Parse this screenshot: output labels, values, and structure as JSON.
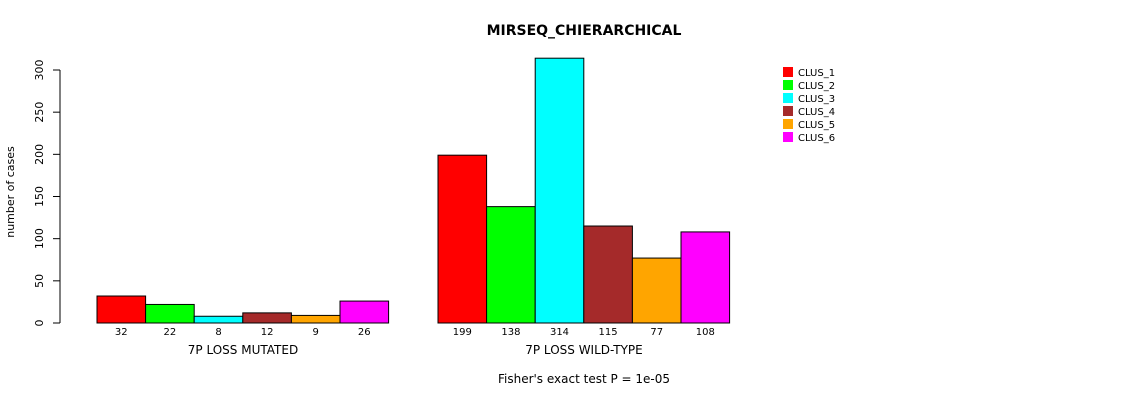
{
  "chart_data": {
    "type": "bar",
    "title": "MIRSEQ_CHIERARCHICAL",
    "ylabel": "number of cases",
    "ylim": [
      0,
      300
    ],
    "yticks": [
      0,
      50,
      100,
      150,
      200,
      250,
      300
    ],
    "groups": [
      {
        "name": "7P LOSS MUTATED",
        "values": [
          32,
          22,
          8,
          12,
          9,
          26
        ]
      },
      {
        "name": "7P LOSS WILD-TYPE",
        "values": [
          199,
          138,
          314,
          115,
          77,
          108
        ]
      }
    ],
    "series": [
      {
        "name": "CLUS_1",
        "color": "#ff0000"
      },
      {
        "name": "CLUS_2",
        "color": "#00ff00"
      },
      {
        "name": "CLUS_3",
        "color": "#00ffff"
      },
      {
        "name": "CLUS_4",
        "color": "#a52a2a"
      },
      {
        "name": "CLUS_5",
        "color": "#ffa500"
      },
      {
        "name": "CLUS_6",
        "color": "#ff00ff"
      }
    ],
    "legend_position": "top-right",
    "footnote": "Fisher's exact test P = 1e-05"
  }
}
